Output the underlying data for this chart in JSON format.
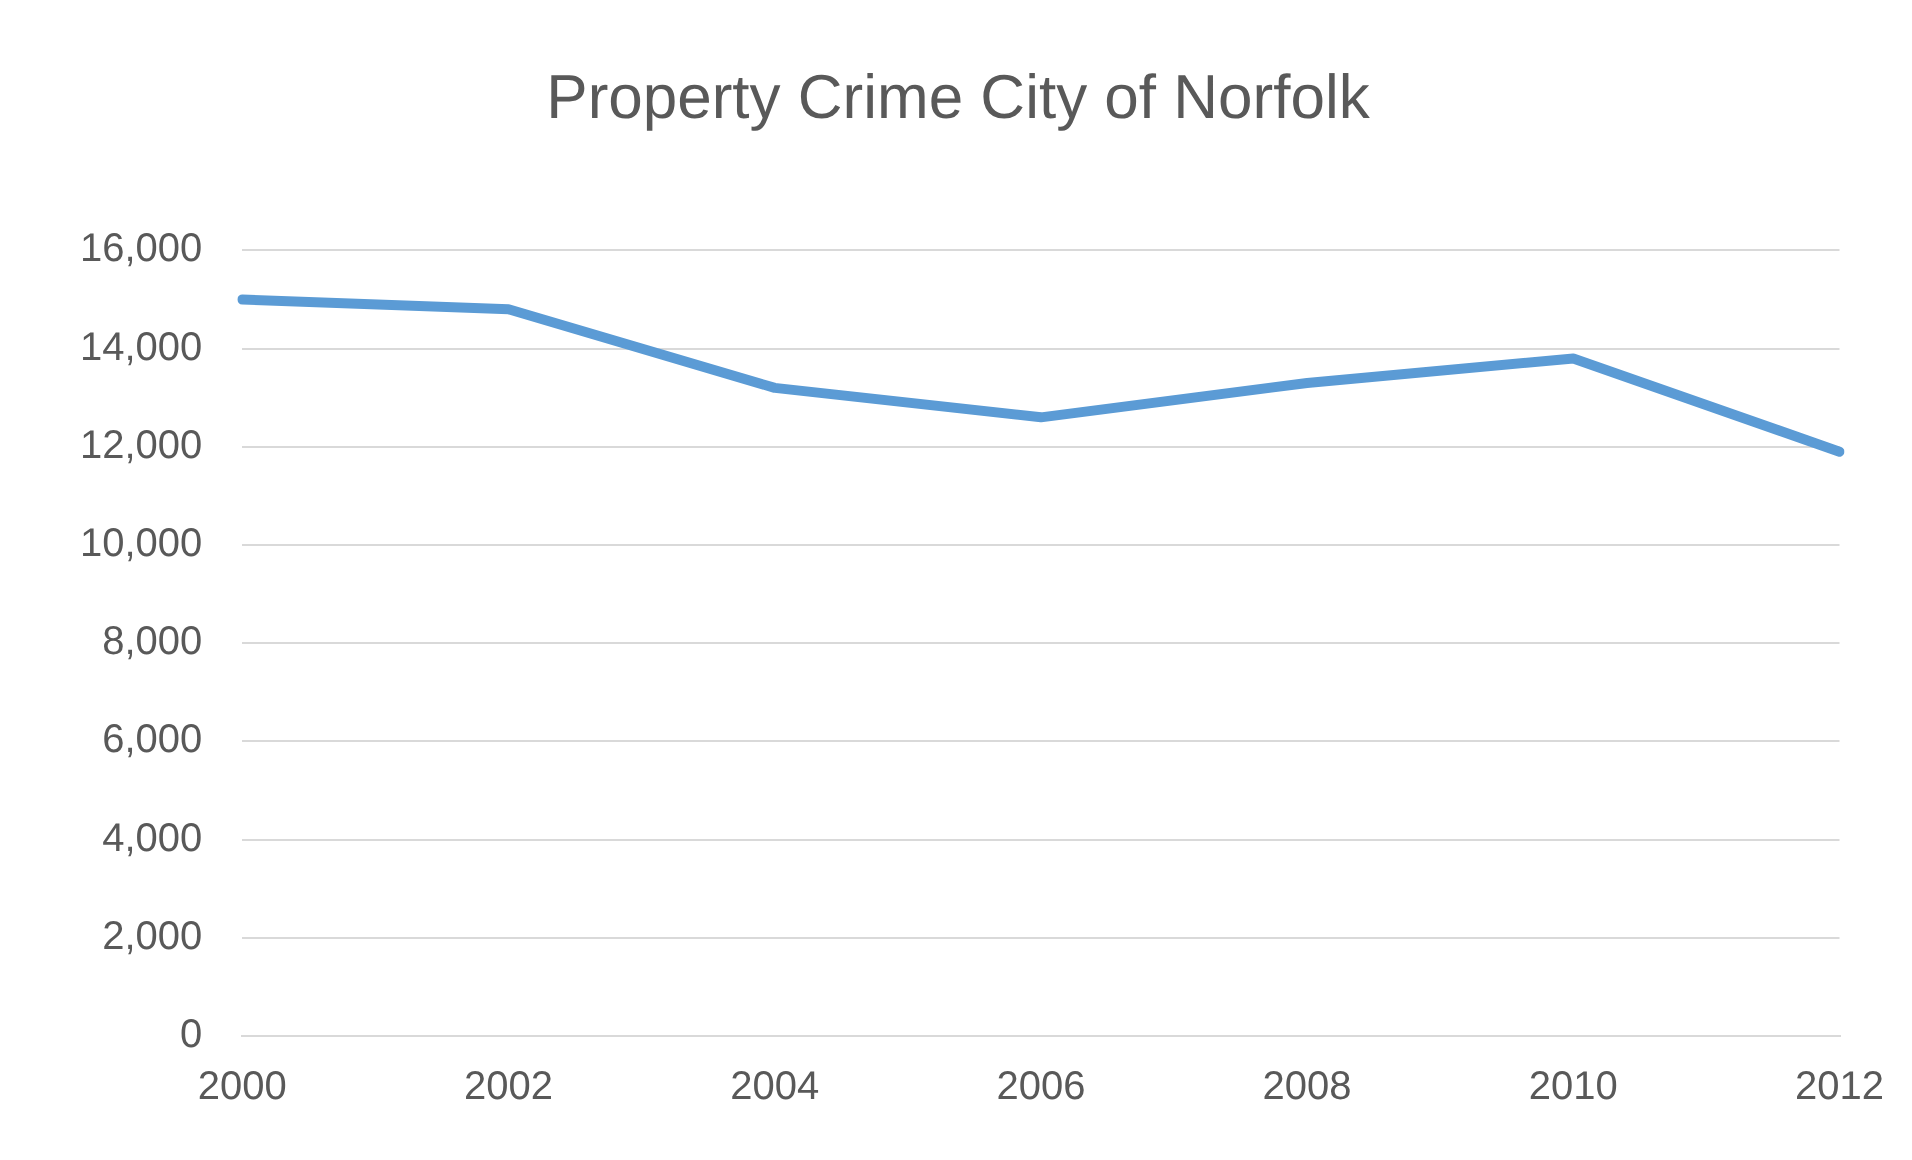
{
  "chart_data": {
    "type": "line",
    "title": "Property Crime City of Norfolk",
    "categories": [
      "2000",
      "2002",
      "2004",
      "2006",
      "2008",
      "2010",
      "2012"
    ],
    "series": [
      {
        "color": "#5b9bd5",
        "values": [
          15000,
          14800,
          13200,
          12600,
          13300,
          13800,
          11900
        ]
      }
    ],
    "ylim": [
      0,
      16000
    ],
    "yticks": [
      {
        "value": 0,
        "label": "0"
      },
      {
        "value": 2000,
        "label": "2,000"
      },
      {
        "value": 4000,
        "label": "4,000"
      },
      {
        "value": 6000,
        "label": "6,000"
      },
      {
        "value": 8000,
        "label": "8,000"
      },
      {
        "value": 10000,
        "label": "10,000"
      },
      {
        "value": 12000,
        "label": "12,000"
      },
      {
        "value": 14000,
        "label": "14,000"
      },
      {
        "value": 16000,
        "label": "16,000"
      }
    ],
    "grid": "y",
    "legend": false,
    "marker": "none",
    "line_style": "solid"
  }
}
